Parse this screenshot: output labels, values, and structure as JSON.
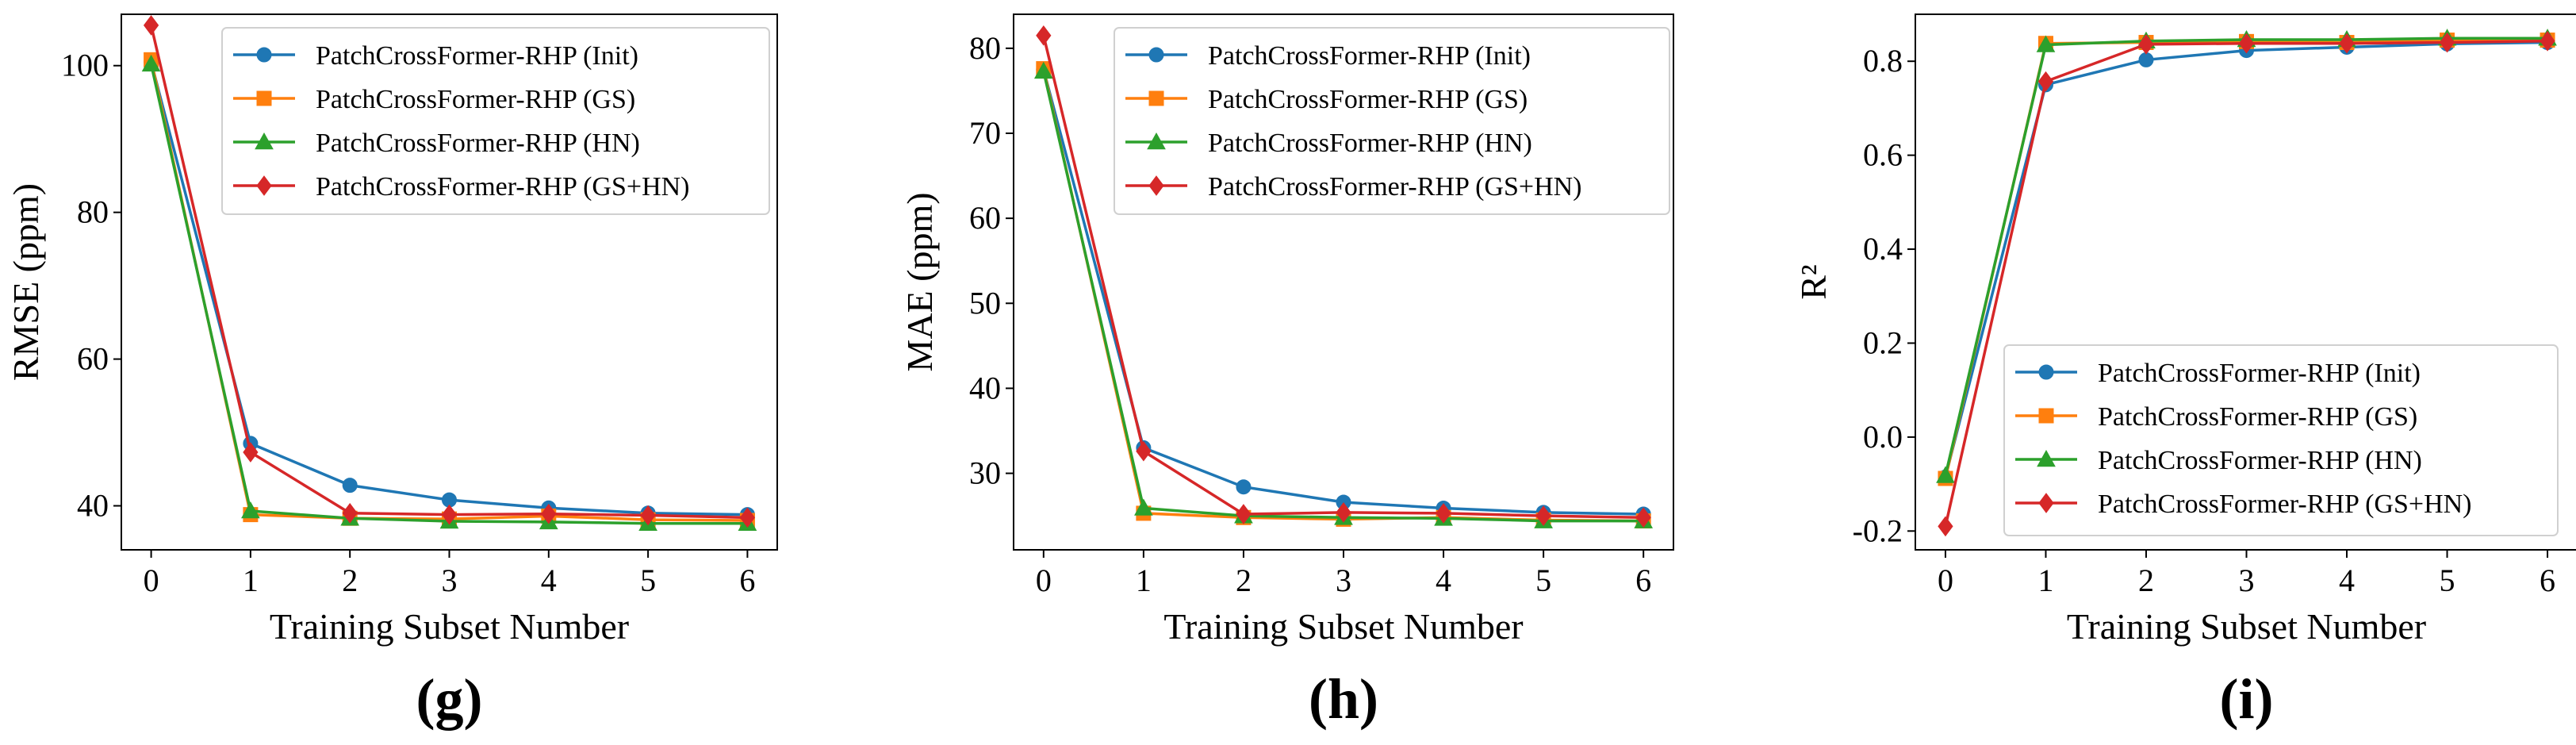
{
  "colors": {
    "init": "#1f77b4",
    "gs": "#ff7f0e",
    "hn": "#2ca02c",
    "gshn": "#d62728"
  },
  "chart_data": [
    {
      "type": "line",
      "panel_label": "(g)",
      "xlabel": "Training Subset Number",
      "ylabel": "RMSE (ppm)",
      "x": [
        0,
        1,
        2,
        3,
        4,
        5,
        6
      ],
      "xlim": [
        -0.3,
        6.3
      ],
      "ylim": [
        34,
        107
      ],
      "yticks": [
        40,
        60,
        80,
        100
      ],
      "ytick_labels": [
        "40",
        "60",
        "80",
        "100"
      ],
      "grid": false,
      "legend_position": "top-right",
      "series": [
        {
          "name": "PatchCrossFormer-RHP (Init)",
          "marker": "circle",
          "color": "#1f77b4",
          "values": [
            100.5,
            48.5,
            42.8,
            40.8,
            39.7,
            39.0,
            38.8
          ]
        },
        {
          "name": "PatchCrossFormer-RHP (GS)",
          "marker": "square",
          "color": "#ff7f0e",
          "values": [
            100.8,
            38.8,
            38.3,
            38.2,
            38.6,
            38.1,
            38.0
          ]
        },
        {
          "name": "PatchCrossFormer-RHP (HN)",
          "marker": "triangle",
          "color": "#2ca02c",
          "values": [
            100.2,
            39.3,
            38.3,
            37.9,
            37.8,
            37.6,
            37.6
          ]
        },
        {
          "name": "PatchCrossFormer-RHP (GS+HN)",
          "marker": "diamond",
          "color": "#d62728",
          "values": [
            105.5,
            47.3,
            39.0,
            38.8,
            38.9,
            38.7,
            38.4
          ]
        }
      ]
    },
    {
      "type": "line",
      "panel_label": "(h)",
      "xlabel": "Training Subset Number",
      "ylabel": "MAE (ppm)",
      "x": [
        0,
        1,
        2,
        3,
        4,
        5,
        6
      ],
      "xlim": [
        -0.3,
        6.3
      ],
      "ylim": [
        21,
        84
      ],
      "yticks": [
        30,
        40,
        50,
        60,
        70,
        80
      ],
      "ytick_labels": [
        "30",
        "40",
        "50",
        "60",
        "70",
        "80"
      ],
      "grid": false,
      "legend_position": "top-right",
      "series": [
        {
          "name": "PatchCrossFormer-RHP (Init)",
          "marker": "circle",
          "color": "#1f77b4",
          "values": [
            77.5,
            33.0,
            28.4,
            26.6,
            25.9,
            25.4,
            25.2
          ]
        },
        {
          "name": "PatchCrossFormer-RHP (GS)",
          "marker": "square",
          "color": "#ff7f0e",
          "values": [
            77.6,
            25.3,
            24.8,
            24.6,
            24.8,
            24.5,
            24.4
          ]
        },
        {
          "name": "PatchCrossFormer-RHP (HN)",
          "marker": "triangle",
          "color": "#2ca02c",
          "values": [
            77.3,
            25.9,
            25.0,
            24.8,
            24.7,
            24.4,
            24.4
          ]
        },
        {
          "name": "PatchCrossFormer-RHP (GS+HN)",
          "marker": "diamond",
          "color": "#d62728",
          "values": [
            81.5,
            32.6,
            25.2,
            25.4,
            25.3,
            25.0,
            24.8
          ]
        }
      ]
    },
    {
      "type": "line",
      "panel_label": "(i)",
      "xlabel": "Training Subset Number",
      "ylabel": "R²",
      "x": [
        0,
        1,
        2,
        3,
        4,
        5,
        6
      ],
      "xlim": [
        -0.3,
        6.3
      ],
      "ylim": [
        -0.24,
        0.9
      ],
      "yticks": [
        -0.2,
        0.0,
        0.2,
        0.4,
        0.6,
        0.8
      ],
      "ytick_labels": [
        "-0.2",
        "0.0",
        "0.2",
        "0.4",
        "0.6",
        "0.8"
      ],
      "grid": false,
      "legend_position": "bottom-right",
      "series": [
        {
          "name": "PatchCrossFormer-RHP (Init)",
          "marker": "circle",
          "color": "#1f77b4",
          "values": [
            -0.085,
            0.75,
            0.803,
            0.823,
            0.83,
            0.837,
            0.84
          ]
        },
        {
          "name": "PatchCrossFormer-RHP (GS)",
          "marker": "square",
          "color": "#ff7f0e",
          "values": [
            -0.088,
            0.838,
            0.84,
            0.842,
            0.84,
            0.845,
            0.845
          ]
        },
        {
          "name": "PatchCrossFormer-RHP (HN)",
          "marker": "triangle",
          "color": "#2ca02c",
          "values": [
            -0.082,
            0.835,
            0.843,
            0.846,
            0.846,
            0.849,
            0.849
          ]
        },
        {
          "name": "PatchCrossFormer-RHP (GS+HN)",
          "marker": "diamond",
          "color": "#d62728",
          "values": [
            -0.19,
            0.757,
            0.836,
            0.838,
            0.838,
            0.84,
            0.843
          ]
        }
      ]
    }
  ]
}
